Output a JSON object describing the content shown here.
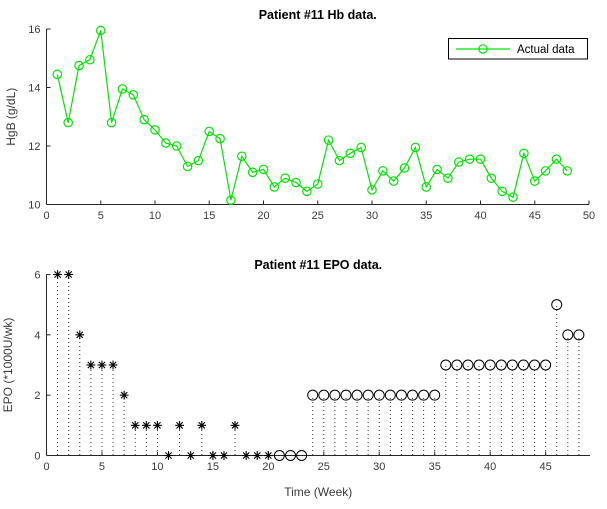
{
  "window": {
    "background": "#ffffff"
  },
  "chart_data": [
    {
      "type": "line",
      "title": "Patient #11 Hb data.",
      "xlabel": "",
      "ylabel": "HgB (g/dL)",
      "xlim": [
        0,
        50
      ],
      "ylim": [
        10,
        16
      ],
      "xticks": [
        0,
        5,
        10,
        15,
        20,
        25,
        30,
        35,
        40,
        45,
        50
      ],
      "yticks": [
        10,
        12,
        14,
        16
      ],
      "grid": false,
      "legend": {
        "label": "Actual data",
        "position": "northeast"
      },
      "line_color": "#00E400",
      "marker": "open-circle",
      "x": [
        1,
        2,
        3,
        4,
        5,
        6,
        7,
        8,
        9,
        10,
        11,
        12,
        13,
        14,
        15,
        16,
        17,
        18,
        19,
        20,
        21,
        22,
        23,
        24,
        25,
        26,
        27,
        28,
        29,
        30,
        31,
        32,
        33,
        34,
        35,
        36,
        37,
        38,
        39,
        40,
        41,
        42,
        43,
        44,
        45,
        46,
        47,
        48
      ],
      "y": [
        14.45,
        12.8,
        14.75,
        14.95,
        15.95,
        12.8,
        13.95,
        13.75,
        12.9,
        12.55,
        12.1,
        12.0,
        11.3,
        11.5,
        12.5,
        12.25,
        10.15,
        11.65,
        11.1,
        11.2,
        10.6,
        10.9,
        10.75,
        10.45,
        10.7,
        12.2,
        11.5,
        11.75,
        11.95,
        10.5,
        11.15,
        10.8,
        11.25,
        11.95,
        10.6,
        11.2,
        10.9,
        11.45,
        11.55,
        11.55,
        10.9,
        10.45,
        10.25,
        11.75,
        10.8,
        11.15,
        11.55,
        11.15
      ]
    },
    {
      "type": "stem",
      "title": "Patient #11 EPO data.",
      "xlabel": "Time (Week)",
      "ylabel": "EPO (*1000U/wk)",
      "xlim": [
        0,
        49
      ],
      "ylim": [
        0,
        6
      ],
      "xticks": [
        0,
        5,
        10,
        15,
        20,
        25,
        30,
        35,
        40,
        45
      ],
      "yticks": [
        0,
        2,
        4,
        6
      ],
      "grid": false,
      "stem_color": "#000000",
      "stem_line_style": "dotted",
      "x": [
        1,
        2,
        3,
        4,
        5,
        6,
        7,
        8,
        9,
        10,
        11,
        12,
        13,
        14,
        15,
        16,
        17,
        18,
        19,
        20,
        21,
        22,
        23,
        24,
        25,
        26,
        27,
        28,
        29,
        30,
        31,
        32,
        33,
        34,
        35,
        36,
        37,
        38,
        39,
        40,
        41,
        42,
        43,
        44,
        45,
        46,
        47,
        48
      ],
      "y": [
        6,
        6,
        4,
        3,
        3,
        3,
        2,
        1,
        1,
        1,
        0,
        1,
        0,
        1,
        0,
        0,
        1,
        0,
        0,
        0,
        0,
        0,
        0,
        2,
        2,
        2,
        2,
        2,
        2,
        2,
        2,
        2,
        2,
        2,
        2,
        3,
        3,
        3,
        3,
        3,
        3,
        3,
        3,
        3,
        3,
        5,
        4,
        4
      ],
      "markers": [
        "*",
        "*",
        "*",
        "*",
        "*",
        "*",
        "*",
        "*",
        "*",
        "*",
        "*",
        "*",
        "*",
        "*",
        "*",
        "*",
        "*",
        "*",
        "*",
        "*",
        "o",
        "o",
        "o",
        "o",
        "o",
        "o",
        "o",
        "o",
        "o",
        "o",
        "o",
        "o",
        "o",
        "o",
        "o",
        "o",
        "o",
        "o",
        "o",
        "o",
        "o",
        "o",
        "o",
        "o",
        "o",
        "o",
        "o",
        "o"
      ]
    }
  ]
}
